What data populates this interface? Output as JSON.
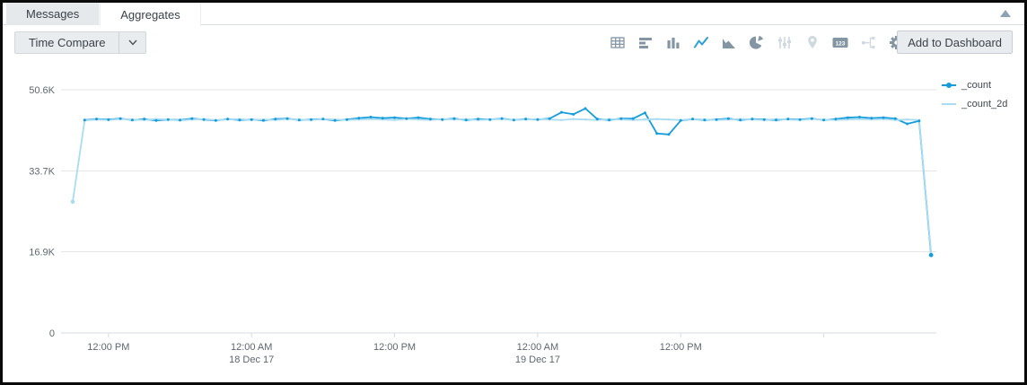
{
  "panel": {
    "collapse_icon": "collapse-up-triangle",
    "collapse_color": "#8ca1b4"
  },
  "tabs": [
    {
      "label": "Messages",
      "active": false
    },
    {
      "label": "Aggregates",
      "active": true
    }
  ],
  "toolbar": {
    "time_compare_label": "Time Compare",
    "add_to_dashboard_label": "Add to Dashboard",
    "single_value_badge": "123",
    "active_icon_color": "#2a9fd8",
    "icon_color": "#8496a3",
    "disabled_icon_color": "#cfd9e0",
    "icons": [
      {
        "name": "table-icon",
        "state": "normal"
      },
      {
        "name": "bar-chart-horizontal-icon",
        "state": "normal"
      },
      {
        "name": "column-chart-icon",
        "state": "normal"
      },
      {
        "name": "line-chart-icon",
        "state": "active"
      },
      {
        "name": "area-chart-icon",
        "state": "normal"
      },
      {
        "name": "pie-chart-icon",
        "state": "normal"
      },
      {
        "name": "sliders-icon",
        "state": "disabled"
      },
      {
        "name": "map-pin-icon",
        "state": "disabled"
      },
      {
        "name": "single-value-icon",
        "state": "normal"
      },
      {
        "name": "transpose-icon",
        "state": "disabled"
      },
      {
        "name": "settings-gear-icon",
        "state": "normal"
      }
    ]
  },
  "chart_data": {
    "type": "line",
    "title": "",
    "grid": true,
    "legend_position": "right",
    "x_axis": {
      "bucket_interval": "1 hour",
      "tick_bucket_indices": [
        3,
        15,
        27,
        39,
        51,
        63
      ],
      "tick_labels": [
        {
          "label": "12:00 PM",
          "sublabel": ""
        },
        {
          "label": "12:00 AM",
          "sublabel": "18 Dec 17"
        },
        {
          "label": "12:00 PM",
          "sublabel": ""
        },
        {
          "label": "12:00 AM",
          "sublabel": "19 Dec 17"
        },
        {
          "label": "12:00 PM",
          "sublabel": ""
        },
        {
          "label": "",
          "sublabel": ""
        }
      ]
    },
    "y_axis": {
      "min": 0,
      "max": 50600,
      "ticks": [
        {
          "value": 0,
          "label": "0"
        },
        {
          "value": 16900,
          "label": "16.9K"
        },
        {
          "value": 33700,
          "label": "33.7K"
        },
        {
          "value": 50600,
          "label": "50.6K"
        }
      ]
    },
    "series": [
      {
        "name": "_count",
        "color": "#149cdc",
        "values": [
          null,
          44300,
          44500,
          44400,
          44600,
          44300,
          44500,
          44200,
          44400,
          44300,
          44600,
          44400,
          44200,
          44500,
          44300,
          44400,
          44200,
          44500,
          44600,
          44300,
          44400,
          44500,
          44200,
          44400,
          44700,
          44900,
          44700,
          44800,
          44600,
          44800,
          44500,
          44400,
          44600,
          44300,
          44500,
          44400,
          44600,
          44300,
          44500,
          44400,
          44600,
          45900,
          45500,
          46700,
          44500,
          44300,
          44600,
          44600,
          45800,
          41500,
          41300,
          44200,
          44500,
          44300,
          44400,
          44600,
          44300,
          44500,
          44400,
          44300,
          44500,
          44400,
          44600,
          44300,
          44500,
          44800,
          44900,
          44700,
          44800,
          44600,
          43500,
          44100,
          16200
        ]
      },
      {
        "name": "_count_2d",
        "color": "#a9dcf2",
        "values": [
          27300,
          44200,
          44400,
          44300,
          44500,
          44400,
          44300,
          44500,
          44400,
          44200,
          44400,
          44500,
          44300,
          44400,
          44500,
          44300,
          44400,
          44300,
          44500,
          44400,
          44300,
          44500,
          44400,
          44300,
          44400,
          44500,
          44400,
          44300,
          44500,
          44400,
          44300,
          44500,
          44400,
          44500,
          44300,
          44400,
          44500,
          44300,
          44400,
          44500,
          44400,
          44300,
          44500,
          44400,
          44300,
          44500,
          44400,
          44300,
          44400,
          44500,
          44400,
          44300,
          44500,
          44400,
          44300,
          44400,
          44500,
          44400,
          44300,
          44500,
          44400,
          44300,
          44500,
          44400,
          44300,
          44400,
          44500,
          44400,
          44500,
          44300,
          44400,
          44300,
          16600
        ]
      }
    ]
  },
  "chart_style": {
    "grid_color": "#e6e6e6",
    "axis_line_color": "#d4dde2",
    "axis_text_color": "#5d676e"
  }
}
